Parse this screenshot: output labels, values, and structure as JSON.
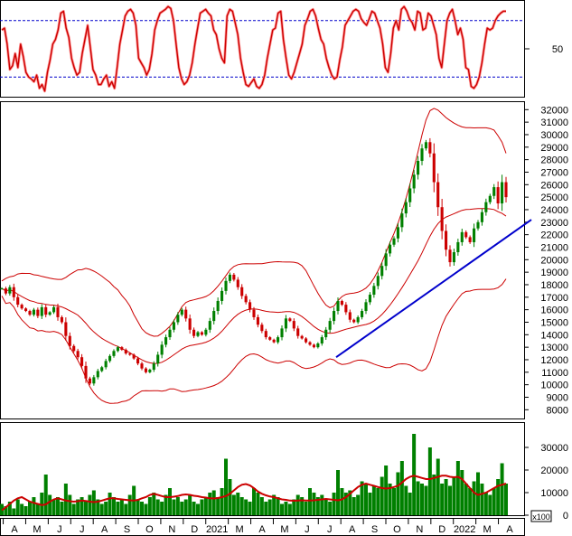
{
  "chart_data": [
    {
      "type": "line",
      "panel": "oscillator",
      "y_ticks": [
        50
      ],
      "ylim": [
        0,
        100
      ],
      "reference_levels": [
        80,
        20
      ],
      "series": [
        {
          "values": [
            70,
            72,
            55,
            28,
            32,
            45,
            30,
            55,
            42,
            25,
            20,
            18,
            15,
            22,
            8,
            12,
            5,
            25,
            38,
            55,
            60,
            70,
            88,
            90,
            72,
            62,
            40,
            30,
            22,
            25,
            45,
            60,
            75,
            52,
            28,
            22,
            12,
            12,
            18,
            22,
            10,
            15,
            8,
            30,
            55,
            70,
            85,
            90,
            92,
            88,
            75,
            40,
            35,
            30,
            22,
            28,
            45,
            70,
            80,
            88,
            90,
            92,
            95,
            93,
            80,
            55,
            30,
            18,
            12,
            15,
            22,
            35,
            55,
            72,
            88,
            90,
            92,
            88,
            85,
            70,
            65,
            50,
            40,
            35,
            85,
            92,
            90,
            78,
            65,
            40,
            25,
            12,
            10,
            14,
            18,
            10,
            8,
            12,
            22,
            40,
            55,
            70,
            72,
            88,
            90,
            60,
            40,
            22,
            18,
            25,
            35,
            45,
            55,
            75,
            82,
            90,
            92,
            85,
            72,
            60,
            55,
            40,
            30,
            22,
            18,
            20,
            38,
            52,
            75,
            80,
            85,
            90,
            92,
            90,
            82,
            78,
            75,
            82,
            90,
            88,
            80,
            72,
            55,
            30,
            25,
            45,
            72,
            80,
            70,
            92,
            95,
            90,
            82,
            78,
            70,
            90,
            88,
            70,
            72,
            88,
            85,
            75,
            65,
            40,
            30,
            55,
            80,
            88,
            92,
            80,
            65,
            72,
            60,
            30,
            28,
            10,
            8,
            12,
            20,
            35,
            55,
            72,
            70,
            72,
            80,
            85,
            88,
            90,
            90
          ]
        }
      ]
    },
    {
      "type": "line",
      "panel": "price",
      "y_ticks": [
        8000,
        9000,
        10000,
        11000,
        12000,
        13000,
        14000,
        15000,
        16000,
        17000,
        18000,
        19000,
        20000,
        21000,
        22000,
        23000,
        24000,
        25000,
        26000,
        27000,
        28000,
        29000,
        30000,
        31000,
        32000
      ],
      "ylim": [
        7300,
        32600
      ],
      "x_tick_labels": [
        "A",
        "M",
        "J",
        "J",
        "A",
        "S",
        "O",
        "N",
        "D",
        "2021",
        "M",
        "A",
        "M",
        "J",
        "J",
        "A",
        "S",
        "O",
        "N",
        "D",
        "2022",
        "M",
        "A"
      ],
      "series": [
        {
          "values": [
            17700,
            17300,
            17800,
            17000,
            16400,
            16100,
            15900,
            15600,
            16000,
            15500,
            16200,
            15600,
            15800,
            16200,
            15400,
            15000,
            13900,
            13100,
            12700,
            12200,
            11500,
            10500,
            10100,
            10600,
            11100,
            11400,
            11900,
            12300,
            12700,
            13000,
            12800,
            12500,
            12400,
            12100,
            11700,
            11300,
            11000,
            11200,
            11700,
            12400,
            13200,
            13800,
            14400,
            15000,
            15600,
            16000,
            15300,
            14400,
            13900,
            14200,
            14000,
            14400,
            15100,
            15900,
            16700,
            17500,
            18300,
            18800,
            18400,
            17800,
            17100,
            16600,
            16000,
            15400,
            14800,
            14300,
            13800,
            13600,
            13400,
            13800,
            14500,
            15300,
            15100,
            14500,
            13900,
            13700,
            13400,
            13200,
            13000,
            13300,
            13800,
            14400,
            15100,
            15900,
            16700,
            16400,
            15800,
            15200,
            15000,
            15400,
            15900,
            16600,
            17200,
            17900,
            18700,
            19500,
            20500,
            21200,
            21700,
            22600,
            23700,
            24600,
            25700,
            26800,
            27900,
            28900,
            29400,
            28500,
            26200,
            24200,
            22300,
            20800,
            19800,
            20600,
            21400,
            22200,
            21800,
            21400,
            22500,
            23000,
            23800,
            24600,
            25100,
            25800,
            24500,
            26200,
            25000
          ]
        },
        {
          "name": "trendline",
          "points": [
            [
              372,
              12200
            ],
            [
              588,
              23200
            ]
          ]
        }
      ]
    },
    {
      "type": "bar",
      "panel": "volume",
      "y_ticks": [
        0,
        10000,
        20000,
        30000
      ],
      "ylim": [
        0,
        40000
      ],
      "unit": "x100",
      "series": [
        {
          "values": [
            5000,
            4000,
            6000,
            3000,
            7000,
            5000,
            4000,
            6000,
            8000,
            5000,
            10000,
            18000,
            9000,
            7000,
            8000,
            6000,
            14000,
            9000,
            5000,
            7000,
            8000,
            6000,
            9000,
            11000,
            7000,
            5000,
            6000,
            10000,
            8000,
            6000,
            7000,
            5000,
            9000,
            13000,
            7000,
            6000,
            5000,
            8000,
            10000,
            7000,
            6000,
            9000,
            12000,
            7000,
            8000,
            6000,
            7000,
            9000,
            6000,
            5000,
            7000,
            8000,
            10000,
            11000,
            8000,
            12000,
            25000,
            16000,
            9000,
            10000,
            8000,
            7000,
            6000,
            12000,
            10000,
            8000,
            6000,
            7000,
            9000,
            8000,
            5000,
            6000,
            5000,
            7000,
            9000,
            8000,
            6000,
            12000,
            10000,
            8000,
            9000,
            7000,
            6000,
            10000,
            20000,
            12000,
            10000,
            11000,
            8000,
            9000,
            15000,
            14000,
            10000,
            13000,
            12000,
            17000,
            22000,
            14000,
            12000,
            19000,
            24000,
            13000,
            10000,
            36000,
            15000,
            14000,
            13000,
            30000,
            18000,
            25000,
            14000,
            16000,
            13000,
            17000,
            24000,
            20000,
            14000,
            12000,
            15000,
            19000,
            14000,
            10000,
            9000,
            12000,
            16000,
            23000,
            14000
          ]
        },
        {
          "name": "moving-average",
          "values": [
            2200,
            3500,
            5000,
            6500,
            7500,
            8000,
            7000,
            6000,
            5500,
            5000,
            4500,
            4800,
            6000,
            7000,
            7500,
            7000,
            6500,
            6200,
            6000,
            6200,
            6500,
            6300,
            6000,
            5800,
            6000,
            6500,
            7000,
            7500,
            7500,
            7200,
            7000,
            6800,
            6600,
            6500,
            6800,
            7500,
            8000,
            9000,
            9500,
            9000,
            8500,
            8000,
            8000,
            8200,
            8500,
            9000,
            9200,
            9000,
            8600,
            8400,
            8000,
            7800,
            7500,
            7400,
            7600,
            8000,
            8500,
            9500,
            11000,
            12500,
            13500,
            13800,
            13200,
            12000,
            10500,
            9500,
            8800,
            8300,
            8000,
            7500,
            7000,
            6800,
            6500,
            6400,
            6500,
            6600,
            6500,
            6500,
            6600,
            6800,
            7000,
            7200,
            7000,
            6800,
            6600,
            7000,
            8000,
            9500,
            11000,
            12500,
            13500,
            14000,
            13500,
            13000,
            12500,
            12000,
            11800,
            12000,
            12500,
            13000,
            14500,
            16000,
            17000,
            17500,
            17000,
            16500,
            16000,
            16000,
            16500,
            17000,
            17500,
            17500,
            17000,
            16800,
            17000,
            16000,
            14000,
            12000,
            10000,
            9000,
            9500,
            10000,
            11000,
            12000,
            13000,
            13500,
            14000
          ]
        }
      ]
    }
  ]
}
